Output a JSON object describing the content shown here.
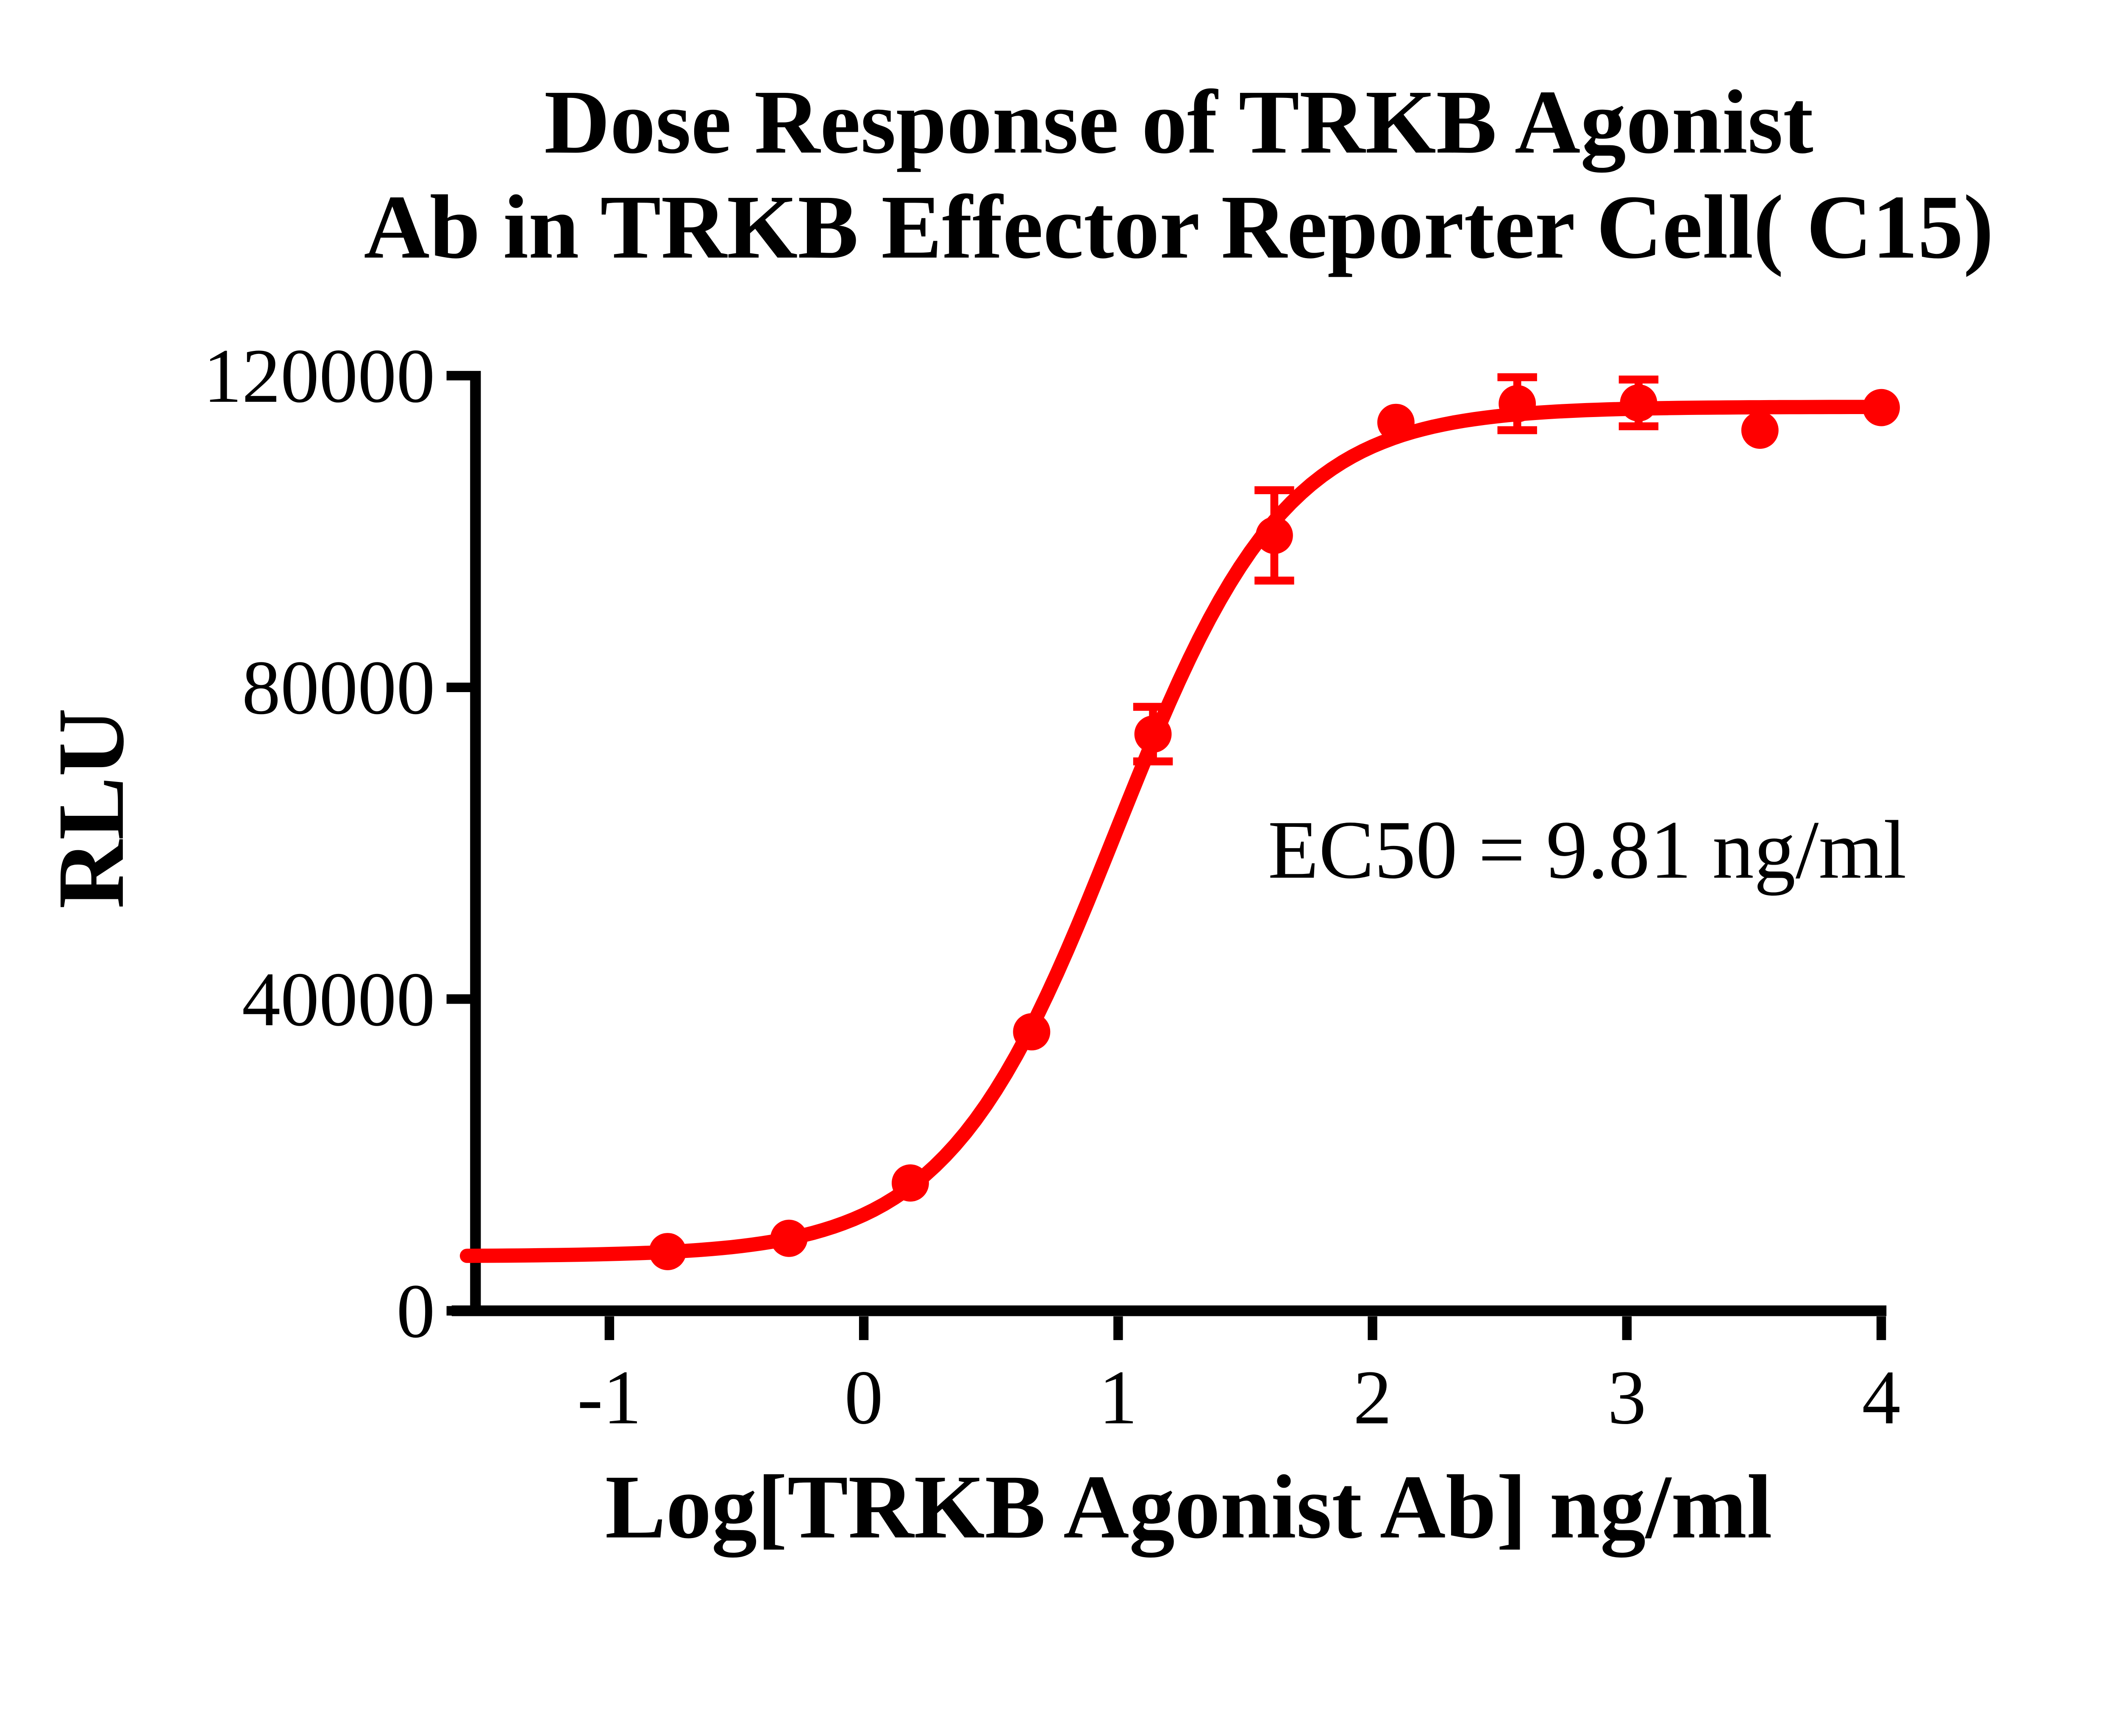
{
  "chart_data": {
    "type": "line",
    "title": "Dose Response of TRKB Agonist Ab in TRKB Effector Reporter Cell( C15)",
    "title_lines": [
      "Dose Response of TRKB Agonist",
      "Ab in TRKB Effector Reporter Cell( C15)"
    ],
    "xlabel": "Log[TRKB Agonist Ab] ng/ml",
    "ylabel": "RLU",
    "annotation": "EC50 = 9.81 ng/ml",
    "ec50_ng_ml": 9.81,
    "x_ticks": [
      -1,
      0,
      1,
      2,
      3,
      4
    ],
    "x_tick_labels": [
      "-1",
      "0",
      "1",
      "2",
      "3",
      "4"
    ],
    "y_ticks": [
      0,
      40000,
      80000,
      120000
    ],
    "y_tick_labels": [
      "0",
      "40000",
      "80000",
      "120000"
    ],
    "xlim": [
      -1.56,
      4.04
    ],
    "ylim": [
      0,
      120000
    ],
    "grid": false,
    "legend": "none",
    "curve_fit": {
      "model": "4PL sigmoid",
      "bottom": 7000,
      "top": 116000,
      "log_ec50": 0.9917,
      "hill_slope": 1.3
    },
    "series": [
      {
        "name": "TRKB Agonist Ab",
        "marker": "filled-circle",
        "points": [
          {
            "log_conc": -0.771,
            "conc_ng_ml": 0.169,
            "rlu": 7600,
            "error": null
          },
          {
            "log_conc": -0.294,
            "conc_ng_ml": 0.508,
            "rlu": 9300,
            "error": null
          },
          {
            "log_conc": 0.183,
            "conc_ng_ml": 1.524,
            "rlu": 16400,
            "error": null
          },
          {
            "log_conc": 0.66,
            "conc_ng_ml": 4.572,
            "rlu": 35800,
            "error": null
          },
          {
            "log_conc": 1.137,
            "conc_ng_ml": 13.72,
            "rlu": 74000,
            "error": 3500
          },
          {
            "log_conc": 1.614,
            "conc_ng_ml": 41.15,
            "rlu": 99500,
            "error": 5800
          },
          {
            "log_conc": 2.092,
            "conc_ng_ml": 123.46,
            "rlu": 114000,
            "error": null
          },
          {
            "log_conc": 2.569,
            "conc_ng_ml": 370.37,
            "rlu": 116400,
            "error": 3400
          },
          {
            "log_conc": 3.046,
            "conc_ng_ml": 1111.1,
            "rlu": 116500,
            "error": 3000
          },
          {
            "log_conc": 3.523,
            "conc_ng_ml": 3333.3,
            "rlu": 113000,
            "error": null
          },
          {
            "log_conc": 4.0,
            "conc_ng_ml": 10000,
            "rlu": 115900,
            "error": null
          }
        ]
      }
    ],
    "colors": {
      "curve": "#FF0000",
      "marker": "#FF0000",
      "error_bar": "#FF0000",
      "axis": "#000000",
      "text": "#000000",
      "background": "#FFFFFF"
    }
  }
}
